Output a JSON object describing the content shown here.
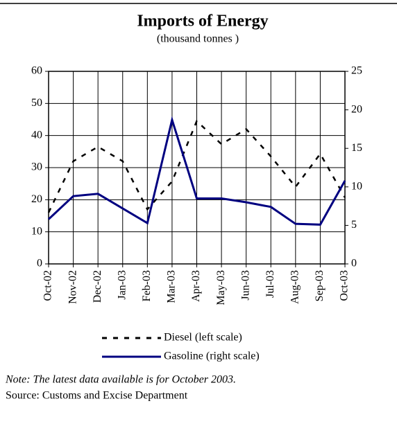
{
  "chart_data": {
    "type": "line",
    "title": "Imports of Energy",
    "subtitle": "(thousand tonnes )",
    "categories": [
      "Oct-02",
      "Nov-02",
      "Dec-02",
      "Jan-03",
      "Feb-03",
      "Mar-03",
      "Apr-03",
      "May-03",
      "Jun-03",
      "Jul-03",
      "Aug-03",
      "Sep-03",
      "Oct-03"
    ],
    "series": [
      {
        "name": "Diesel (left scale)",
        "color": "#000000",
        "line_style": "dashed",
        "axis": "y",
        "values": [
          16,
          32,
          36.5,
          32,
          17,
          25.7,
          44.5,
          37.3,
          42,
          33.5,
          24,
          34.3,
          20.7
        ]
      },
      {
        "name": "Gasoline (right scale)",
        "color": "#000080",
        "line_style": "solid",
        "axis": "y2",
        "values": [
          5.8,
          8.8,
          9.1,
          7.2,
          5.3,
          18.7,
          8.5,
          8.5,
          8.0,
          7.4,
          5.2,
          5.1,
          10.8
        ]
      }
    ],
    "ylim": [
      0,
      60
    ],
    "yticks": [
      0,
      10,
      20,
      30,
      40,
      50,
      60
    ],
    "y2lim": [
      0,
      25
    ],
    "y2ticks": [
      0,
      5,
      10,
      15,
      20,
      25
    ],
    "grid": true,
    "note": "Note: The latest data available is for October 2003.",
    "source": "Source: Customs and Excise Department"
  }
}
